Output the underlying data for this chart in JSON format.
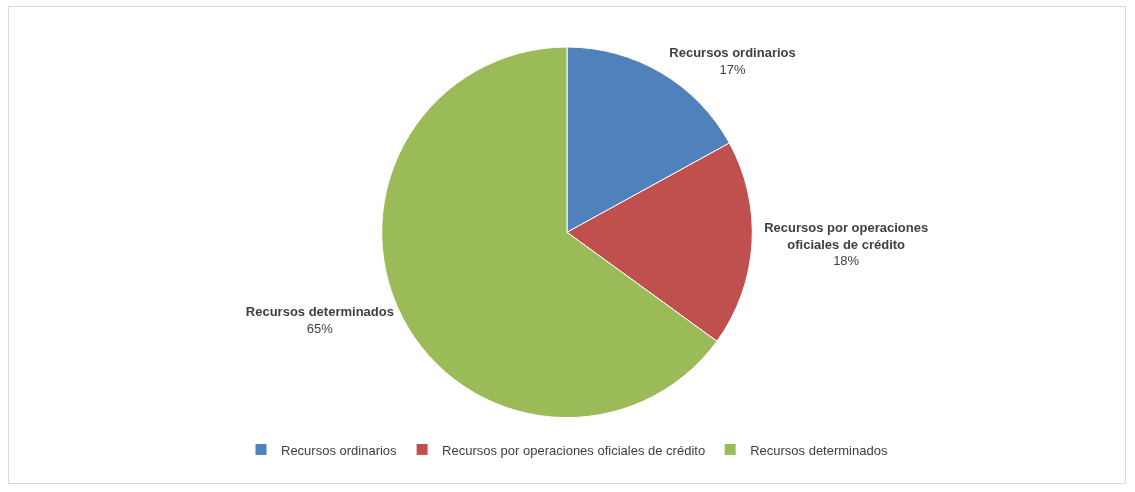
{
  "chart_data": {
    "type": "pie",
    "categories": [
      "Recursos ordinarios",
      "Recursos por operaciones oficiales de crédito",
      "Recursos determinados"
    ],
    "values": [
      17,
      18,
      65
    ],
    "value_labels": [
      "17%",
      "18%",
      "65%"
    ],
    "colors": [
      "#4f81bd",
      "#c0504d",
      "#9bbb59"
    ],
    "legend": "bottom"
  }
}
